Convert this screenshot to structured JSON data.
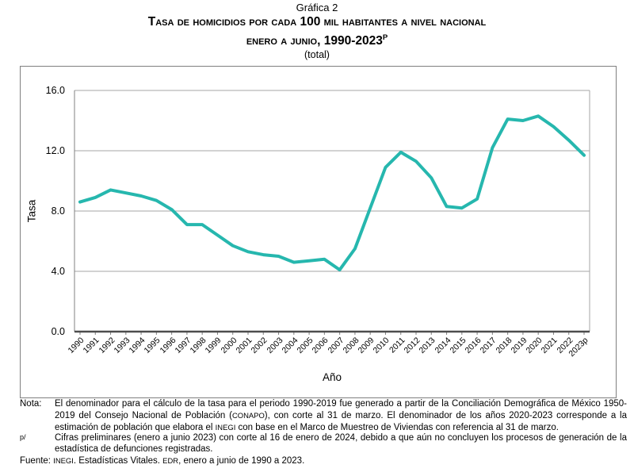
{
  "title": {
    "line1": "Gráfica 2",
    "line2": "Tasa de homicidios por cada 100 mil habitantes a nivel nacional",
    "line3_text": "enero a junio, 1990-2023",
    "line3_sup": "P",
    "line4": "(total)"
  },
  "colors": {
    "line": "#26b7ae",
    "grid": "#a6a6a6",
    "axis": "#808080",
    "axis_bottom": "#4d4d4d",
    "frame_border": "#7f7f7f"
  },
  "chart_data": {
    "type": "line",
    "title": "Tasa de homicidios por cada 100 mil habitantes a nivel nacional, enero a junio, 1990-2023p (total)",
    "xlabel": "Año",
    "ylabel": "Tasa",
    "ylim": [
      0,
      16
    ],
    "y_ticks": [
      0,
      4,
      8,
      12,
      16
    ],
    "y_tick_labels": [
      "0.0",
      "4.0",
      "8.0",
      "12.0",
      "16.0"
    ],
    "grid": true,
    "legend": "none",
    "categories": [
      "1990",
      "1991",
      "1992",
      "1993",
      "1994",
      "1995",
      "1996",
      "1997",
      "1998",
      "1999",
      "2000",
      "2001",
      "2002",
      "2003",
      "2004",
      "2005",
      "2006",
      "2007",
      "2008",
      "2009",
      "2010",
      "2011",
      "2012",
      "2013",
      "2014",
      "2015",
      "2016",
      "2017",
      "2018",
      "2019",
      "2020",
      "2021",
      "2022",
      "2023p"
    ],
    "values": [
      8.6,
      8.9,
      9.4,
      9.2,
      9.0,
      8.7,
      8.1,
      7.1,
      7.1,
      6.4,
      5.7,
      5.3,
      5.1,
      5.0,
      4.6,
      4.7,
      4.8,
      4.1,
      5.5,
      8.2,
      10.9,
      11.9,
      11.3,
      10.2,
      8.3,
      8.2,
      8.8,
      12.2,
      14.1,
      14.0,
      14.3,
      13.6,
      12.7,
      11.7
    ]
  },
  "notes": {
    "note_label": "Nota:",
    "note_text": "El denominador para el cálculo de la tasa para el periodo 1990-2019 fue generado a partir de la Conciliación Demográfica de México 1950-2019 del Consejo Nacional de Población (CONAPO), con corte al 31 de marzo. El denominador de los años 2020-2023 corresponde a la estimación de población que elabora el INEGI con base en el Marco de Muestreo de Viviendas con referencia al 31 de marzo.",
    "p_label": "p/",
    "p_text": "Cifras preliminares (enero a junio 2023) con corte al 16 de enero de 2024, debido a que aún no concluyen los procesos de generación de la estadística de defunciones registradas.",
    "fuente_label": "Fuente:",
    "fuente_text": "INEGI. Estadísticas Vitales. EDR, enero a junio de 1990 a 2023."
  }
}
